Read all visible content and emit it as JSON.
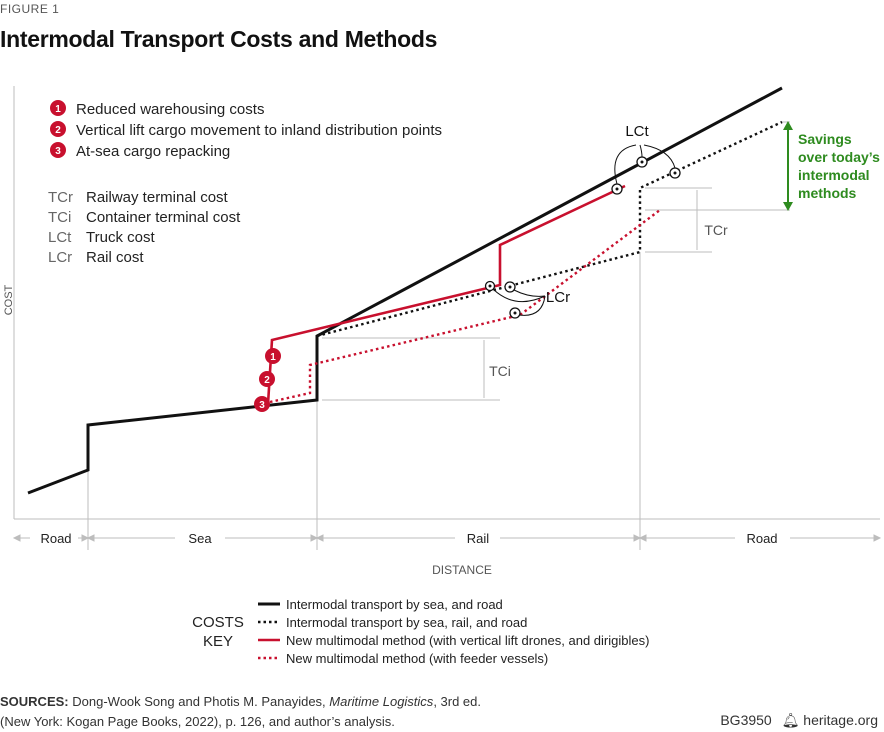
{
  "figure_label": "FIGURE 1",
  "chart_data": {
    "type": "line",
    "title": "Intermodal Transport Costs and Methods",
    "xlabel": "DISTANCE",
    "ylabel": "COST",
    "segments": [
      "Road",
      "Sea",
      "Rail",
      "Road"
    ],
    "series": [
      {
        "name": "Intermodal transport by sea, and road",
        "color": "#111111",
        "style": "solid"
      },
      {
        "name": "Intermodal transport by sea, rail, and road",
        "color": "#111111",
        "style": "dotted"
      },
      {
        "name": "New multimodal method (with vertical lift drones, and dirigibles)",
        "color": "#c8102e",
        "style": "solid"
      },
      {
        "name": "New multimodal method (with feeder vessels)",
        "color": "#c8102e",
        "style": "dotted"
      }
    ],
    "annotations": {
      "numbered": [
        {
          "num": "1",
          "text": "Reduced warehousing costs"
        },
        {
          "num": "2",
          "text": "Vertical lift cargo movement to inland distribution points"
        },
        {
          "num": "3",
          "text": "At-sea cargo repacking"
        }
      ],
      "abbreviations": [
        {
          "abbr": "TCr",
          "text": "Railway terminal cost"
        },
        {
          "abbr": "TCi",
          "text": "Container terminal cost"
        },
        {
          "abbr": "LCt",
          "text": "Truck cost"
        },
        {
          "abbr": "LCr",
          "text": "Rail cost"
        }
      ],
      "lct_label": "LCt",
      "lcr_label": "LCr",
      "tci_label": "TCi",
      "tcr_label": "TCr",
      "savings": [
        "Savings",
        "over today’s",
        "intermodal",
        "methods"
      ]
    },
    "key_title": [
      "COSTS",
      "KEY"
    ]
  },
  "colors": {
    "red": "#c8102e",
    "green": "#2e8b1f",
    "black": "#111111",
    "gray": "#bdbdbd"
  },
  "sources": {
    "label": "SOURCES:",
    "authors": "Dong-Wook Song and Photis M. Panayides,",
    "book": "Maritime Logistics",
    "rest1": ", 3rd ed.",
    "line2": "(New York: Kogan Page Books, 2022), p. 126, and author’s analysis."
  },
  "brand": {
    "code": "BG3950",
    "site": "heritage.org"
  }
}
